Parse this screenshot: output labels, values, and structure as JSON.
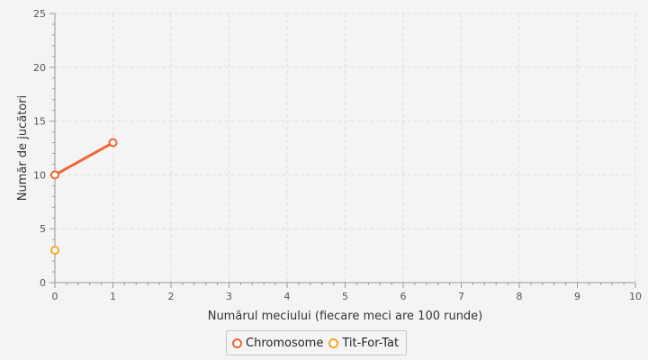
{
  "chart_data": {
    "type": "line",
    "title": "",
    "xlabel": "Numărul meciului (fiecare meci are 100 runde)",
    "ylabel": "Număr de jucători",
    "xlim": [
      0,
      10
    ],
    "ylim": [
      0,
      25
    ],
    "x_ticks": [
      0,
      1,
      2,
      3,
      4,
      5,
      6,
      7,
      8,
      9,
      10
    ],
    "y_ticks": [
      0,
      5,
      10,
      15,
      20,
      25
    ],
    "grid": true,
    "legend_position": "bottom-center",
    "series": [
      {
        "name": "Chromosome",
        "color": "#ee6633",
        "x": [
          0,
          1
        ],
        "y": [
          10,
          13
        ]
      },
      {
        "name": "Tit-For-Tat",
        "color": "#f5a623",
        "x": [
          0
        ],
        "y": [
          3
        ]
      }
    ]
  }
}
